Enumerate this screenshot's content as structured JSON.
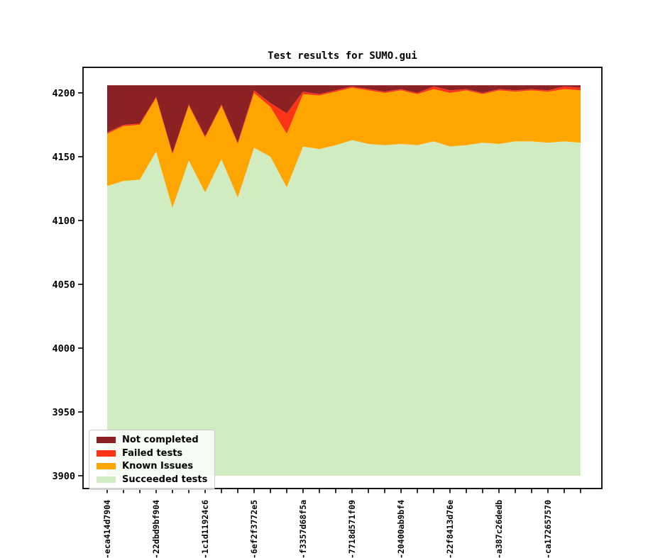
{
  "title": "Test results for SUMO.gui",
  "chart_data": {
    "type": "area",
    "stacked": true,
    "title": "Test results for SUMO.gui",
    "n_points": 30,
    "label_every": 3,
    "x_tick_labels": [
      "-eca414d7904",
      "-22dbd9bf904",
      "-1c1d11924c6",
      "-6ef2f3772e5",
      "-f3357d68f5a",
      "-7718d571f09",
      "-20400ab9bf4",
      "-22f8413d76e",
      "-a387c26dedb",
      "-ca172657570"
    ],
    "y_ticks": [
      3900,
      3950,
      4000,
      4050,
      4100,
      4150,
      4200
    ],
    "ylim": [
      3890,
      4220
    ],
    "baseline": 3900,
    "total_per_point": 4206,
    "grid": false,
    "series": [
      {
        "name": "Succeeded tests",
        "color": "#d2ecc1",
        "values": [
          4127,
          4131,
          4132,
          4154,
          4110,
          4147,
          4122,
          4148,
          4118,
          4157,
          4150,
          4126,
          4158,
          4156,
          4159,
          4163,
          4160,
          4159,
          4160,
          4159,
          4162,
          4158,
          4159,
          4161,
          4160,
          4162,
          4162,
          4161,
          4162,
          4161
        ]
      },
      {
        "name": "Known Issues",
        "color": "#ffa500",
        "values": [
          41,
          43,
          43,
          42,
          42,
          43,
          43,
          42,
          42,
          43,
          39,
          42,
          41,
          42,
          42,
          41,
          42,
          41,
          42,
          40,
          41,
          42,
          43,
          38,
          42,
          39,
          40,
          40,
          41,
          41
        ]
      },
      {
        "name": "Failed tests",
        "color": "#fb3317",
        "values": [
          1,
          1,
          1,
          1,
          1,
          1,
          1,
          1,
          1,
          2,
          3,
          16,
          2,
          1,
          1,
          1,
          1,
          1,
          1,
          1,
          2,
          2,
          1,
          1,
          1,
          1,
          1,
          1,
          2,
          2
        ]
      },
      {
        "name": "Not completed",
        "color": "#8b2123",
        "values": [
          37,
          31,
          30,
          9,
          53,
          15,
          40,
          15,
          45,
          4,
          14,
          22,
          5,
          7,
          4,
          1,
          3,
          5,
          3,
          6,
          1,
          4,
          3,
          6,
          3,
          4,
          3,
          4,
          1,
          2
        ]
      }
    ],
    "legend": {
      "position": "lower-left",
      "entries": [
        "Not completed",
        "Failed tests",
        "Known Issues",
        "Succeeded tests"
      ]
    }
  }
}
